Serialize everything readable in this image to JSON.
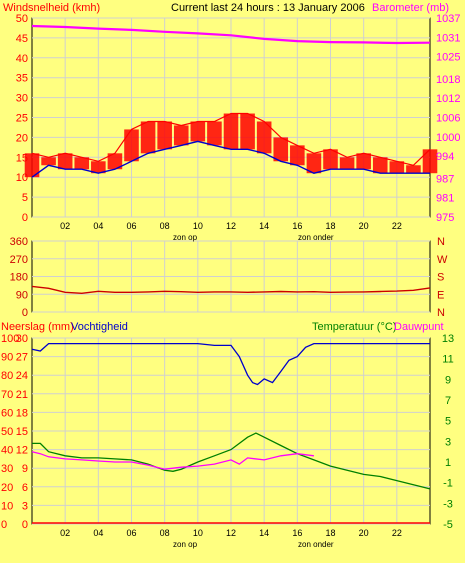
{
  "header": {
    "left_title": "Windsnelheid (kmh)",
    "center_title": "Current last 24 hours : 13 January 2006",
    "right_title": "Barometer (mb)"
  },
  "middle_panel": {
    "right_letters": [
      "N",
      "W",
      "S",
      "E",
      "N"
    ]
  },
  "bottom_header": {
    "left_title_1": "Neerslag (mm)",
    "left_title_2": "Vochtigheid",
    "right_title_1": "Temperatuur (°C)",
    "right_title_2": "Dauwpunt"
  },
  "x_axis": {
    "hour_labels": [
      "02",
      "04",
      "06",
      "08",
      "10",
      "12",
      "14",
      "16",
      "18",
      "20",
      "22"
    ],
    "sunrise_label": "zon op",
    "sunset_label": "zon onder"
  },
  "colors": {
    "background": "#ffff80",
    "grid": "#d0d0d0",
    "wind_gust": "#ff0000",
    "wind_avg": "#0000cc",
    "barometer": "#ff00ff",
    "direction": "#cc0000",
    "humidity": "#0000cc",
    "temperature": "#008000",
    "dewpoint": "#ff00ff",
    "rain": "#ff0000",
    "left_label": "#ff0000",
    "right_label": "#ff00ff",
    "temp_label": "#008000"
  },
  "chart_data": [
    {
      "type": "line",
      "title": "Current last 24 hours : 13 January 2006",
      "x_unit": "hours",
      "xlim": [
        0,
        24
      ],
      "left_axis": {
        "label": "Windsnelheid (kmh)",
        "ylim": [
          0,
          50
        ],
        "ticks": [
          0,
          5,
          10,
          15,
          20,
          25,
          30,
          35,
          40,
          45,
          50
        ]
      },
      "right_axis": {
        "label": "Barometer (mb)",
        "ylim": [
          975,
          1037
        ],
        "ticks": [
          975,
          981,
          987,
          994,
          1000,
          1006,
          1012,
          1018,
          1025,
          1031,
          1037
        ]
      },
      "grid": true,
      "series": [
        {
          "axis": "left",
          "style": "gust-bars",
          "color_key": "wind_gust",
          "x": [
            0,
            1,
            2,
            3,
            4,
            5,
            6,
            7,
            8,
            9,
            10,
            11,
            12,
            13,
            14,
            15,
            16,
            17,
            18,
            19,
            20,
            21,
            22,
            23,
            24
          ],
          "values": [
            16,
            15,
            16,
            15,
            14,
            16,
            22,
            24,
            24,
            23,
            24,
            24,
            26,
            26,
            24,
            20,
            18,
            16,
            17,
            15,
            16,
            15,
            14,
            13,
            17
          ]
        },
        {
          "axis": "left",
          "color_key": "wind_avg",
          "x": [
            0,
            1,
            2,
            3,
            4,
            5,
            6,
            7,
            8,
            9,
            10,
            11,
            12,
            13,
            14,
            15,
            16,
            17,
            18,
            19,
            20,
            21,
            22,
            23,
            24
          ],
          "values": [
            10,
            13,
            12,
            12,
            11,
            12,
            14,
            16,
            17,
            18,
            19,
            18,
            17,
            17,
            16,
            14,
            13,
            11,
            12,
            12,
            12,
            11,
            11,
            11,
            11
          ]
        },
        {
          "axis": "right",
          "color_key": "barometer",
          "x": [
            0,
            2,
            4,
            6,
            8,
            10,
            12,
            14,
            16,
            18,
            20,
            22,
            24
          ],
          "values": [
            1034.5,
            1034.2,
            1033.7,
            1033.3,
            1032.7,
            1032.2,
            1031.6,
            1030.5,
            1029.8,
            1029.5,
            1029.4,
            1029.2,
            1029.3
          ]
        }
      ]
    },
    {
      "type": "line",
      "xlim": [
        0,
        24
      ],
      "left_axis": {
        "ylim": [
          0,
          360
        ],
        "ticks": [
          0,
          90,
          180,
          270,
          360
        ]
      },
      "right_axis": {
        "ticks": [
          "N",
          "W",
          "S",
          "E",
          "N"
        ]
      },
      "grid": true,
      "series": [
        {
          "axis": "left",
          "color_key": "direction",
          "x": [
            0,
            1,
            2,
            3,
            4,
            5,
            6,
            7,
            8,
            9,
            10,
            11,
            12,
            13,
            14,
            15,
            16,
            17,
            18,
            19,
            20,
            21,
            22,
            23,
            24
          ],
          "values": [
            130,
            120,
            100,
            95,
            105,
            100,
            100,
            102,
            105,
            103,
            100,
            102,
            102,
            100,
            102,
            104,
            102,
            103,
            100,
            101,
            102,
            104,
            106,
            110,
            122
          ]
        }
      ]
    },
    {
      "type": "line",
      "xlim": [
        0,
        24
      ],
      "left_axis": {
        "label": "Neerslag (mm) Vochtigheid",
        "ylim": [
          0,
          100
        ],
        "ticks": [
          0,
          10,
          20,
          30,
          40,
          50,
          60,
          70,
          80,
          90,
          100
        ],
        "tick_labels_inner": [
          "0",
          "3",
          "6",
          "9",
          "12",
          "15",
          "18",
          "21",
          "24",
          "27",
          "30"
        ]
      },
      "right_axis": {
        "label": "Temperatuur (°C) Dauwpunt",
        "ylim": [
          -5,
          13
        ],
        "ticks": [
          -5,
          -3,
          -1,
          1,
          3,
          5,
          7,
          9,
          11,
          13
        ]
      },
      "grid": true,
      "series": [
        {
          "axis": "left",
          "color_key": "humidity",
          "x": [
            0,
            0.5,
            1,
            2,
            4,
            6,
            8,
            9,
            10,
            11,
            12,
            12.5,
            13,
            13.3,
            13.6,
            14,
            14.5,
            15,
            15.5,
            16,
            16.5,
            17,
            18,
            20,
            22,
            24
          ],
          "values": [
            94,
            93,
            97,
            97,
            97,
            97,
            97,
            97,
            97,
            96,
            96,
            90,
            80,
            76,
            75,
            78,
            76,
            82,
            88,
            90,
            95,
            97,
            97,
            97,
            97,
            97
          ]
        },
        {
          "axis": "right",
          "color_key": "temperature",
          "x": [
            0,
            0.5,
            1,
            2,
            3,
            4,
            5,
            6,
            7,
            8,
            8.5,
            9,
            10,
            11,
            12,
            13,
            13.5,
            14,
            15,
            16,
            17,
            18,
            19,
            20,
            21,
            22,
            23,
            24
          ],
          "values": [
            2.8,
            2.8,
            2.0,
            1.6,
            1.4,
            1.4,
            1.3,
            1.2,
            0.8,
            0.2,
            0.1,
            0.3,
            1.0,
            1.6,
            2.2,
            3.4,
            3.8,
            3.4,
            2.6,
            1.8,
            1.2,
            0.6,
            0.2,
            -0.2,
            -0.4,
            -0.8,
            -1.2,
            -1.6
          ]
        },
        {
          "axis": "right",
          "color_key": "dewpoint",
          "x": [
            0,
            0.5,
            1,
            2,
            3,
            4,
            5,
            6,
            7,
            8,
            9,
            10,
            11,
            12,
            12.5,
            13,
            14,
            15,
            16,
            17
          ],
          "values": [
            2.0,
            1.8,
            1.5,
            1.3,
            1.2,
            1.1,
            1.0,
            1.0,
            0.7,
            0.3,
            0.5,
            0.6,
            0.8,
            1.2,
            0.8,
            1.4,
            1.2,
            1.6,
            1.8,
            1.6
          ]
        },
        {
          "axis": "left",
          "color_key": "rain",
          "x": [
            0,
            24
          ],
          "values": [
            0,
            0
          ]
        }
      ]
    }
  ]
}
